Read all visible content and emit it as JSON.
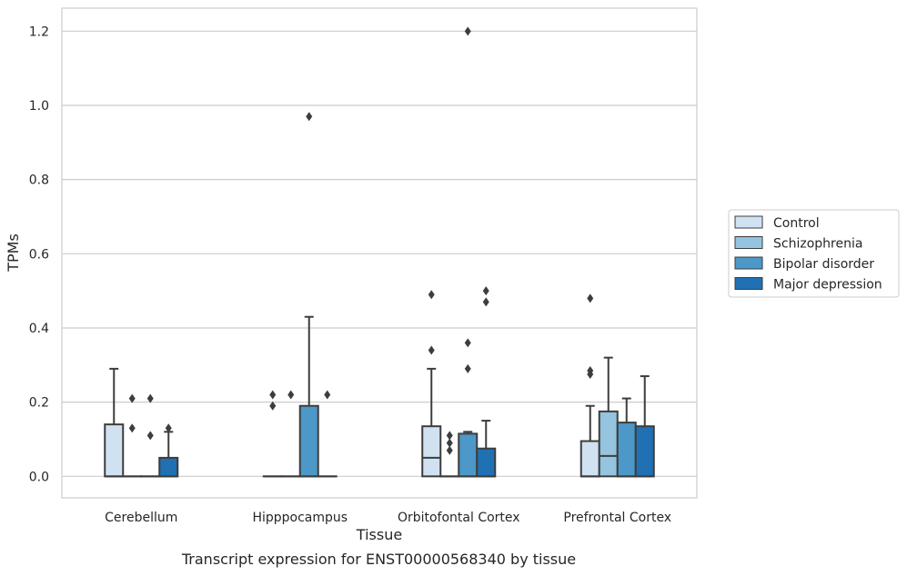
{
  "caption": "Transcript expression for ENST00000568340 by tissue",
  "chart_data": {
    "type": "box",
    "title": "",
    "xlabel": "Tissue",
    "ylabel": "TPMs",
    "ylim": [
      -0.058,
      1.262
    ],
    "yticks": [
      0.0,
      0.2,
      0.4,
      0.6,
      0.8,
      1.0,
      1.2
    ],
    "yticklabels": [
      "0.0",
      "0.2",
      "0.4",
      "0.6",
      "0.8",
      "1.0",
      "1.2"
    ],
    "grid": "horizontal",
    "legend_position": "right",
    "categories": [
      "Cerebellum",
      "Hipppocampus",
      "Orbitofontal Cortex",
      "Prefrontal Cortex"
    ],
    "series": [
      {
        "name": "Control",
        "color": "#d0e1f2",
        "boxes": [
          {
            "q1": 0.0,
            "median": 0.0,
            "q3": 0.14,
            "whisker_low": 0.0,
            "whisker_high": 0.29,
            "outliers": []
          },
          {
            "q1": 0.0,
            "median": 0.0,
            "q3": 0.0,
            "whisker_low": 0.0,
            "whisker_high": 0.0,
            "outliers": [
              0.19,
              0.22
            ]
          },
          {
            "q1": 0.0,
            "median": 0.05,
            "q3": 0.135,
            "whisker_low": 0.0,
            "whisker_high": 0.29,
            "outliers": [
              0.34,
              0.49
            ]
          },
          {
            "q1": 0.0,
            "median": 0.0,
            "q3": 0.095,
            "whisker_low": 0.0,
            "whisker_high": 0.19,
            "outliers": [
              0.275,
              0.285,
              0.48
            ]
          }
        ]
      },
      {
        "name": "Schizophrenia",
        "color": "#94c4df",
        "boxes": [
          {
            "q1": 0.0,
            "median": 0.0,
            "q3": 0.0,
            "whisker_low": 0.0,
            "whisker_high": 0.0,
            "outliers": [
              0.13,
              0.21
            ]
          },
          {
            "q1": 0.0,
            "median": 0.0,
            "q3": 0.0,
            "whisker_low": 0.0,
            "whisker_high": 0.0,
            "outliers": [
              0.22
            ]
          },
          {
            "q1": 0.0,
            "median": 0.0,
            "q3": 0.0,
            "whisker_low": 0.0,
            "whisker_high": 0.0,
            "outliers": [
              0.07,
              0.09,
              0.11
            ]
          },
          {
            "q1": 0.0,
            "median": 0.055,
            "q3": 0.175,
            "whisker_low": 0.0,
            "whisker_high": 0.32,
            "outliers": []
          }
        ]
      },
      {
        "name": "Bipolar disorder",
        "color": "#4b98c9",
        "boxes": [
          {
            "q1": 0.0,
            "median": 0.0,
            "q3": 0.0,
            "whisker_low": 0.0,
            "whisker_high": 0.0,
            "outliers": [
              0.11,
              0.21
            ]
          },
          {
            "q1": 0.0,
            "median": 0.0,
            "q3": 0.19,
            "whisker_low": 0.0,
            "whisker_high": 0.43,
            "outliers": [
              0.97
            ]
          },
          {
            "q1": 0.0,
            "median": 0.0,
            "q3": 0.115,
            "whisker_low": 0.0,
            "whisker_high": 0.12,
            "outliers": [
              0.29,
              0.36,
              1.2
            ]
          },
          {
            "q1": 0.0,
            "median": 0.0,
            "q3": 0.145,
            "whisker_low": 0.0,
            "whisker_high": 0.21,
            "outliers": []
          }
        ]
      },
      {
        "name": "Major depression",
        "color": "#2070b4",
        "boxes": [
          {
            "q1": 0.0,
            "median": 0.0,
            "q3": 0.05,
            "whisker_low": 0.0,
            "whisker_high": 0.12,
            "outliers": [
              0.13
            ]
          },
          {
            "q1": 0.0,
            "median": 0.0,
            "q3": 0.0,
            "whisker_low": 0.0,
            "whisker_high": 0.0,
            "outliers": [
              0.22
            ]
          },
          {
            "q1": 0.0,
            "median": 0.0,
            "q3": 0.075,
            "whisker_low": 0.0,
            "whisker_high": 0.15,
            "outliers": [
              0.47,
              0.5
            ]
          },
          {
            "q1": 0.0,
            "median": 0.0,
            "q3": 0.135,
            "whisker_low": 0.0,
            "whisker_high": 0.27,
            "outliers": []
          }
        ]
      }
    ]
  }
}
